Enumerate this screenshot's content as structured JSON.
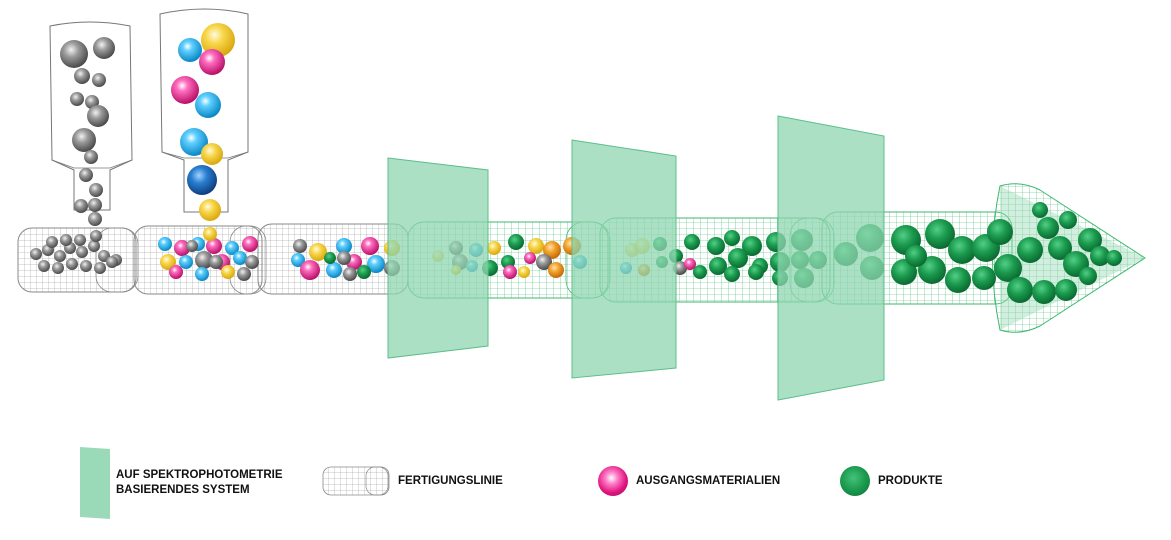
{
  "legend": {
    "spectro_line1": "AUF SPEKTROPHOTOMETRIE",
    "spectro_line2": "BASIERENDES SYSTEM",
    "production_line": "FERTIGUNGSLINIE",
    "raw_materials": "AUSGANGSMATERIALIEN",
    "products": "PRODUKTE"
  },
  "colors": {
    "panel_green": "#8fd6b0",
    "wire_green": "#27b05e",
    "wire_gray": "#8a8a8a",
    "product_green": "#1b9a4e",
    "magenta": "#e0157f",
    "cyan": "#18a8e0",
    "yellow": "#f5c932",
    "gray_ball": "#7a7a7a",
    "orange": "#ef9a1e",
    "dark_blue": "#1560a8"
  }
}
